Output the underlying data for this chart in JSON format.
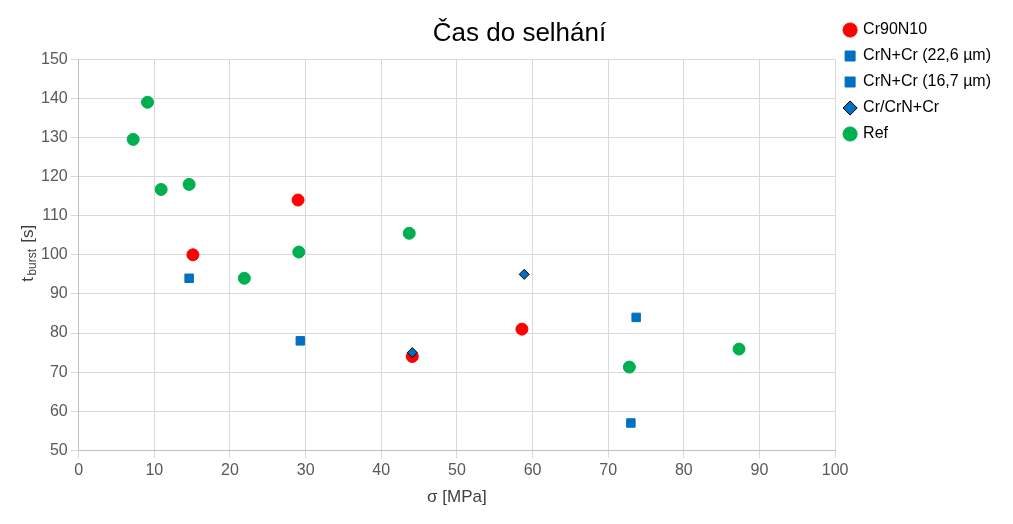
{
  "chart_data": {
    "type": "scatter",
    "title": "Čas do selhání",
    "xlabel": "σ [MPa]",
    "ylabel": "t$_{burst}$ [s]",
    "xlim": [
      0,
      100
    ],
    "xticks": [
      0,
      10,
      20,
      30,
      40,
      50,
      60,
      70,
      80,
      90,
      100
    ],
    "ylim": [
      50,
      150
    ],
    "yticks": [
      50,
      60,
      70,
      80,
      90,
      100,
      110,
      120,
      130,
      140,
      150
    ],
    "grid": true,
    "legend": "top right",
    "series": [
      {
        "name": "Cr90N10",
        "color": "#ff0000",
        "marker": "circle",
        "x": [
          15.1,
          29,
          44.1,
          58.6
        ],
        "values": [
          100,
          114,
          74,
          81
        ]
      },
      {
        "name": "CrN+Cr (22,6 µm)",
        "color": "#0070c0",
        "marker": "square",
        "x": [
          14.6,
          29.3,
          73.7
        ],
        "values": [
          94,
          78,
          84
        ]
      },
      {
        "name": "CrN+Cr (16,7 µm)",
        "color": "#0070c0",
        "marker": "square",
        "x": [
          73
        ],
        "values": [
          57
        ]
      },
      {
        "name": "Cr/CrN+Cr",
        "color": "#0070c0",
        "marker": "diamond",
        "x": [
          44.1,
          58.9
        ],
        "values": [
          75,
          95
        ]
      },
      {
        "name": "Ref",
        "color": "#00b050",
        "marker": "circle",
        "x": [
          7.2,
          9.1,
          10.9,
          14.6,
          21.9,
          29.1,
          43.7,
          72.8,
          87.3
        ],
        "values": [
          129.5,
          139,
          116.7,
          118,
          94,
          100.7,
          105.5,
          71.3,
          75.9
        ]
      }
    ]
  }
}
